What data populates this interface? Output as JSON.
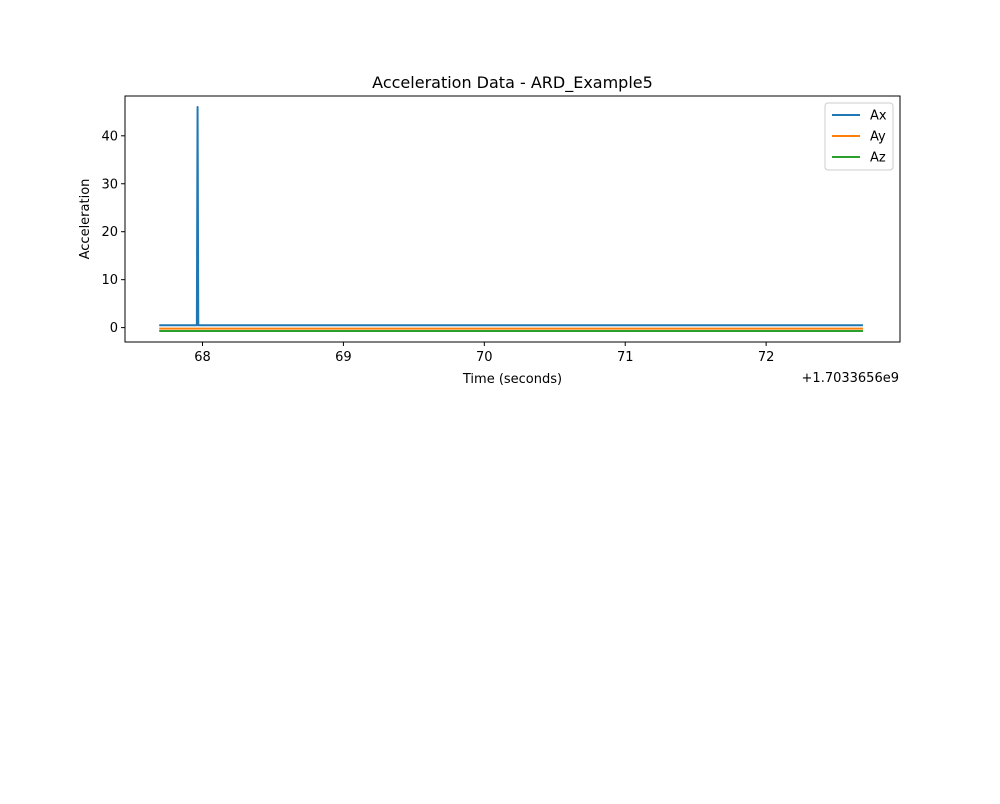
{
  "chart_data": {
    "type": "line",
    "title": "Acceleration Data - ARD_Example5",
    "xlabel": "Time (seconds)",
    "ylabel": "Acceleration",
    "x_offset_label": "+1.7033656e9",
    "xlim": [
      67.45,
      72.95
    ],
    "ylim": [
      -3.0,
      48.3
    ],
    "x_ticks": [
      68,
      69,
      70,
      71,
      72
    ],
    "y_ticks": [
      0,
      10,
      20,
      30,
      40
    ],
    "grid": false,
    "legend_position": "top-right",
    "series": [
      {
        "name": "Ax",
        "color": "#1f77b4",
        "points": [
          [
            67.7,
            0.5
          ],
          [
            67.96,
            0.5
          ],
          [
            67.965,
            46.0
          ],
          [
            67.97,
            0.5
          ],
          [
            72.68,
            0.5
          ]
        ]
      },
      {
        "name": "Ay",
        "color": "#ff7f0e",
        "points": [
          [
            67.7,
            -0.2
          ],
          [
            72.68,
            -0.2
          ]
        ]
      },
      {
        "name": "Az",
        "color": "#2ca02c",
        "points": [
          [
            67.7,
            -0.7
          ],
          [
            72.68,
            -0.7
          ]
        ]
      }
    ]
  }
}
